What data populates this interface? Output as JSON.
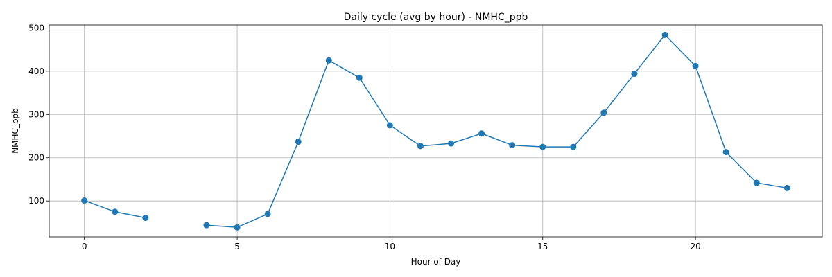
{
  "chart_data": {
    "type": "line",
    "title": "Daily cycle (avg by hour) - NMHC_ppb",
    "xlabel": "Hour of Day",
    "ylabel": "NMHC_ppb",
    "xlim": [
      -1.15,
      24.15
    ],
    "ylim": [
      17,
      507
    ],
    "xticks": [
      0,
      5,
      10,
      15,
      20
    ],
    "yticks": [
      100,
      200,
      300,
      400,
      500
    ],
    "grid": true,
    "line_color": "#1f77b4",
    "series": [
      {
        "x": [
          0,
          1,
          2,
          3,
          4,
          5,
          6,
          7,
          8,
          9,
          10,
          11,
          12,
          13,
          14,
          15,
          16,
          17,
          18,
          19,
          20,
          21,
          22,
          23
        ],
        "values": [
          101,
          75,
          61,
          null,
          44,
          39,
          70,
          237,
          425,
          385,
          275,
          227,
          233,
          256,
          229,
          225,
          225,
          304,
          394,
          484,
          412,
          213,
          142,
          130
        ]
      }
    ]
  }
}
